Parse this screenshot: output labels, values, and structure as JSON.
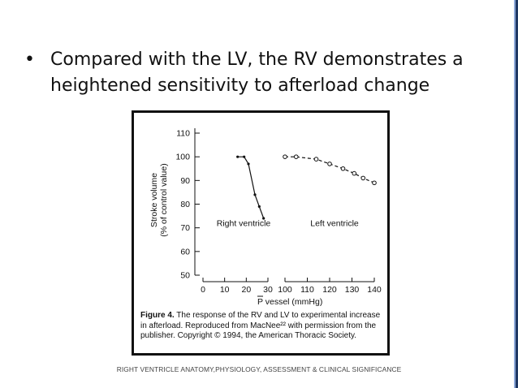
{
  "slide": {
    "bullet_symbol": "•",
    "bullet_text": "Compared with the LV, the RV demonstrates a heightened sensitivity to afterload change",
    "footer": "RIGHT VENTRICLE  ANATOMY,PHYSIOLOGY, ASSESSMENT & CLINICAL SIGNIFICANCE",
    "accent_colors": {
      "dark": "#1f3864",
      "light": "#8eaadb"
    }
  },
  "figure": {
    "caption_label": "Figure 4.",
    "caption_text": " The response of the RV and LV to experimental increase in afterload. Reproduced from MacNee²² with permission from the publisher. Copyright © 1994, the American Thoracic Society."
  },
  "chart_data": {
    "type": "line",
    "title": "",
    "ylabel_line1": "Stroke volume",
    "ylabel_line2": "(% of control value)",
    "xlabel": "P vessel (mmHg)",
    "ylim": [
      50,
      110
    ],
    "yticks": [
      50,
      60,
      70,
      80,
      90,
      100,
      110
    ],
    "series": [
      {
        "name": "Right ventricle",
        "style": "solid",
        "marker": "dot",
        "x": [
          16,
          19,
          21,
          24,
          26,
          28
        ],
        "y": [
          100,
          100,
          97,
          84,
          79,
          74
        ]
      },
      {
        "name": "Left ventricle",
        "style": "dashed",
        "marker": "open-circle",
        "x": [
          100,
          105,
          114,
          120,
          126,
          131,
          135,
          140
        ],
        "y": [
          100,
          100,
          99,
          97,
          95,
          93,
          91,
          89
        ]
      }
    ],
    "segments": [
      {
        "xlim": [
          0,
          30
        ],
        "xticks": [
          0,
          10,
          20,
          30
        ]
      },
      {
        "xlim": [
          100,
          140
        ],
        "xticks": [
          100,
          110,
          120,
          130,
          140
        ]
      }
    ]
  }
}
